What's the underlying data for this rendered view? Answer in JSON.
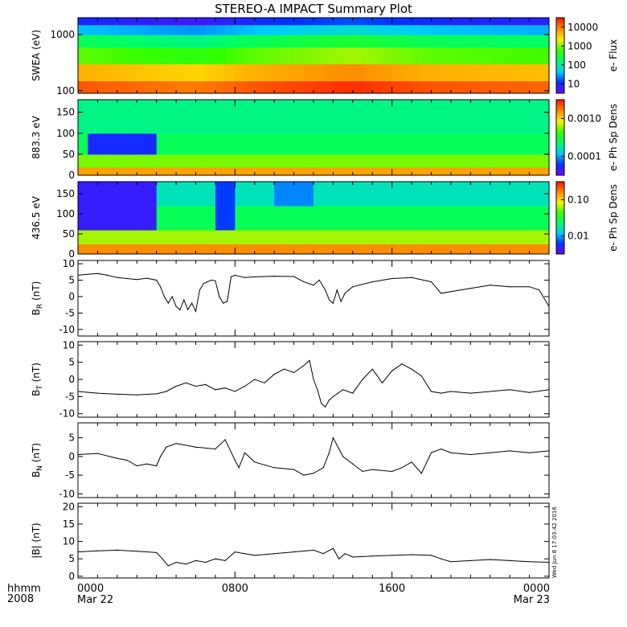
{
  "title": "STEREO-A IMPACT Summary Plot",
  "x_axis": {
    "ticks": [
      "0000",
      "0800",
      "1600",
      "0000"
    ],
    "tick_hours": [
      0,
      8,
      16,
      24
    ],
    "date_labels": [
      "Mar 22",
      "",
      "",
      "Mar 23"
    ],
    "left_labels": [
      "hhmm",
      "2008"
    ]
  },
  "stamp": "Wed Jun  8 17:03:42 2016",
  "colors": {
    "line": "#000000",
    "spectrogram_scale": [
      "#7a00ff",
      "#0033ff",
      "#00ccff",
      "#00ff66",
      "#33ff00",
      "#ffee00",
      "#ff8800",
      "#ff1500"
    ]
  },
  "chart_data": [
    {
      "type": "heatmap",
      "ylabel": "SWEA (eV)",
      "y_ticks": [
        "1000",
        "100"
      ],
      "ylim": [
        90,
        2000
      ],
      "y_scale": "log",
      "colorbar_label": "e- Flux",
      "colorbar_ticks": [
        "10000",
        "1000",
        "100",
        "10"
      ],
      "colorbar_scale": "log",
      "x": [
        0,
        24
      ],
      "y_bands": [
        90,
        150,
        300,
        600,
        1000,
        1500,
        2000
      ],
      "band_levels": [
        0.92,
        0.8,
        0.6,
        0.45,
        0.28,
        0.12,
        0.05
      ],
      "time_modulation": [
        [
          0,
          0.0
        ],
        [
          6,
          -0.05
        ],
        [
          9,
          0.0
        ],
        [
          14,
          0.05
        ],
        [
          18,
          0.0
        ],
        [
          24,
          -0.02
        ]
      ]
    },
    {
      "type": "heatmap",
      "ylabel": "883.3 eV",
      "y_ticks": [
        "150",
        "100",
        "50",
        "0"
      ],
      "ylim": [
        0,
        180
      ],
      "colorbar_label": "e- Ph Sp Dens",
      "colorbar_ticks": [
        "0.0010",
        "0.0001"
      ],
      "colorbar_scale": "log",
      "x": [
        0,
        24
      ],
      "y_bands": [
        0,
        20,
        50,
        100,
        180
      ],
      "band_levels": [
        0.82,
        0.62,
        0.45,
        0.4
      ],
      "events": [
        {
          "start": 0.5,
          "end": 3.8,
          "ymin": 65,
          "ymax": 110,
          "level": 0.12
        }
      ]
    },
    {
      "type": "heatmap",
      "ylabel": "436.5 eV",
      "y_ticks": [
        "150",
        "100",
        "50",
        "0"
      ],
      "ylim": [
        0,
        180
      ],
      "colorbar_label": "e- Ph Sp Dens",
      "colorbar_ticks": [
        "0.10",
        "0.01"
      ],
      "colorbar_scale": "log",
      "x": [
        0,
        24
      ],
      "y_bands": [
        0,
        25,
        60,
        120,
        180
      ],
      "band_levels": [
        0.85,
        0.65,
        0.45,
        0.35
      ],
      "events": [
        {
          "start": 0.0,
          "end": 4.0,
          "ymin": 60,
          "ymax": 180,
          "level": 0.08
        },
        {
          "start": 7.2,
          "end": 8.0,
          "ymin": 70,
          "ymax": 180,
          "level": 0.15
        },
        {
          "start": 10.0,
          "end": 12.0,
          "ymin": 120,
          "ymax": 180,
          "level": 0.22
        }
      ]
    },
    {
      "type": "line",
      "ylabel": "B_R (nT)",
      "ylabel_main": "B",
      "ylabel_sub": "R",
      "ylabel_unit": " (nT)",
      "ylim": [
        -12,
        11
      ],
      "y_ticks": [
        10,
        5,
        0,
        -5,
        -10
      ],
      "x": [
        0,
        0.5,
        1,
        1.5,
        2,
        2.5,
        3,
        3.5,
        4,
        4.2,
        4.4,
        4.6,
        4.8,
        5,
        5.2,
        5.4,
        5.6,
        5.8,
        6,
        6.2,
        6.4,
        6.6,
        6.8,
        7,
        7.2,
        7.4,
        7.6,
        7.8,
        8,
        8.5,
        9,
        10,
        11,
        11.5,
        12,
        12.3,
        12.6,
        12.8,
        13,
        13.2,
        13.4,
        13.6,
        13.8,
        14,
        15,
        16,
        17,
        18,
        18.5,
        19,
        20,
        21,
        22,
        23,
        23.5,
        24
      ],
      "values": [
        6.5,
        6.8,
        7,
        6.5,
        5.8,
        5.5,
        5.2,
        5.6,
        5,
        3,
        0,
        -2,
        0,
        -3,
        -4,
        -1,
        -4,
        -2,
        -4.5,
        2,
        4,
        4.5,
        5,
        4.8,
        0,
        -2,
        -1.5,
        6,
        6.5,
        5.8,
        6,
        6.2,
        6.1,
        4.5,
        3.5,
        5,
        2,
        -1,
        -2,
        2,
        -1.5,
        1,
        2,
        3,
        4.5,
        5.5,
        5.8,
        4.5,
        1,
        1.5,
        2.5,
        3.5,
        3,
        3,
        2,
        -3
      ]
    },
    {
      "type": "line",
      "ylabel": "B_T (nT)",
      "ylabel_main": "B",
      "ylabel_sub": "T",
      "ylabel_unit": " (nT)",
      "ylim": [
        -11,
        11
      ],
      "y_ticks": [
        10,
        5,
        0,
        -5,
        -10
      ],
      "x": [
        0,
        1,
        2,
        3,
        4,
        4.5,
        5,
        5.5,
        6,
        6.5,
        7,
        7.5,
        8,
        8.5,
        9,
        9.5,
        10,
        10.5,
        11,
        11.5,
        11.8,
        12,
        12.2,
        12.4,
        12.6,
        12.8,
        13,
        13.5,
        14,
        14.5,
        15,
        15.5,
        16,
        16.5,
        17,
        17.5,
        18,
        18.5,
        19,
        20,
        21,
        22,
        23,
        24
      ],
      "values": [
        -3.5,
        -4,
        -4.3,
        -4.5,
        -4.2,
        -3.5,
        -2,
        -1,
        -2,
        -1.5,
        -3,
        -2.5,
        -3.5,
        -2,
        0,
        -1,
        1.5,
        3,
        2,
        4,
        5.5,
        0,
        -3,
        -7,
        -8,
        -6,
        -5,
        -3,
        -4,
        0,
        3,
        -1,
        2.5,
        4.5,
        3,
        1,
        -3.5,
        -4,
        -3.5,
        -4,
        -3.5,
        -3,
        -3.8,
        -3
      ]
    },
    {
      "type": "line",
      "ylabel": "B_N (nT)",
      "ylabel_main": "B",
      "ylabel_sub": "N",
      "ylabel_unit": " (nT)",
      "ylim": [
        -11,
        9
      ],
      "y_ticks": [
        5,
        0,
        -5,
        -10
      ],
      "x": [
        0,
        1,
        2,
        2.5,
        3,
        3.5,
        4,
        4.2,
        4.5,
        5,
        6,
        7,
        7.5,
        8,
        8.2,
        8.5,
        9,
        10,
        11,
        11.5,
        12,
        12.5,
        12.8,
        13,
        13.5,
        14,
        14.5,
        15,
        16,
        16.5,
        17,
        17.5,
        18,
        18.5,
        19,
        20,
        21,
        22,
        23,
        24
      ],
      "values": [
        0.5,
        0.8,
        -0.5,
        -1,
        -2.5,
        -2,
        -2.5,
        0,
        2.5,
        3.5,
        2.5,
        2,
        4.5,
        -1,
        -3,
        1,
        -1.5,
        -3,
        -3.5,
        -5,
        -4.5,
        -3,
        1,
        5,
        0,
        -2,
        -4,
        -3.5,
        -4,
        -3,
        -1.5,
        -4.5,
        1,
        2,
        1,
        0.5,
        1,
        1.5,
        1,
        1.5
      ]
    },
    {
      "type": "line",
      "ylabel": "|B| (nT)",
      "ylabel_main": "|B|",
      "ylabel_sub": "",
      "ylabel_unit": " (nT)",
      "ylim": [
        -0.5,
        21
      ],
      "y_ticks": [
        20,
        15,
        10,
        5,
        0
      ],
      "x": [
        0,
        1,
        2,
        3,
        4,
        4.3,
        4.6,
        5,
        5.5,
        6,
        6.5,
        7,
        7.5,
        8,
        8.5,
        9,
        10,
        11,
        12,
        12.5,
        13,
        13.3,
        13.6,
        14,
        15,
        16,
        17,
        18,
        18.5,
        19,
        20,
        21,
        22,
        23,
        24
      ],
      "values": [
        7,
        7.3,
        7.5,
        7.2,
        6.8,
        5,
        3,
        4,
        3.5,
        4.5,
        4,
        5,
        4.5,
        7,
        6.5,
        6,
        6.5,
        7,
        7.5,
        6.5,
        8,
        5,
        6.5,
        5.5,
        5.8,
        6,
        6.2,
        6,
        5,
        4.2,
        4.5,
        4.8,
        4.5,
        4.2,
        4
      ]
    }
  ]
}
